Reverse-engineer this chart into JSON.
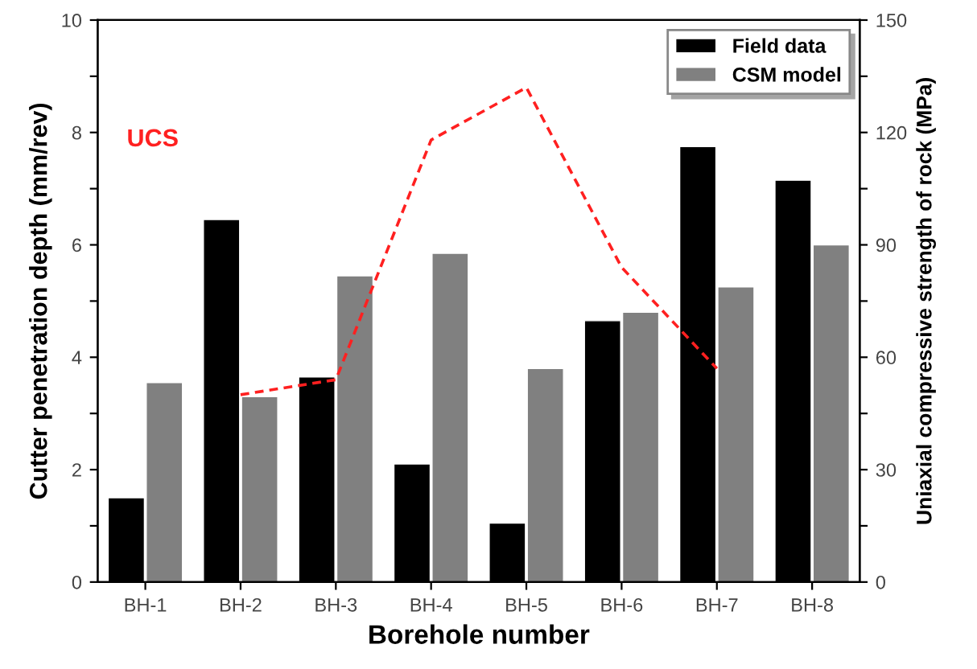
{
  "chart_data": {
    "type": "bar",
    "xlabel": "Borehole number",
    "ylabel": "Cutter penetration depth (mm/rev)",
    "y2label": "Uniaxial compressive strength of rock (MPa)",
    "categories": [
      "BH-1",
      "BH-2",
      "BH-3",
      "BH-4",
      "BH-5",
      "BH-6",
      "BH-7",
      "BH-8"
    ],
    "series": [
      {
        "name": "Field data",
        "color": "#000000",
        "values": [
          1.5,
          6.45,
          3.65,
          2.1,
          1.05,
          4.65,
          7.75,
          7.15
        ]
      },
      {
        "name": "CSM model",
        "color": "#808080",
        "values": [
          3.55,
          3.3,
          5.45,
          5.85,
          3.8,
          4.8,
          5.25,
          6.0
        ]
      },
      {
        "name": "UCS",
        "type": "line",
        "axis": "y2",
        "color": "#ff2020",
        "line_style": "dashed",
        "marker": "none",
        "values": [
          null,
          50,
          54,
          118,
          132,
          84,
          57,
          null
        ]
      }
    ],
    "ylim": [
      0,
      10
    ],
    "yticks": [
      0,
      {
        "value": 1,
        "label": null
      },
      2,
      {
        "value": 3,
        "label": null
      },
      4,
      {
        "value": 5,
        "label": null
      },
      6,
      {
        "value": 7,
        "label": null
      },
      8,
      {
        "value": 9,
        "label": null
      },
      10
    ],
    "y2lim": [
      0,
      150
    ],
    "y2ticks": [
      0,
      {
        "value": 15,
        "label": null
      },
      30,
      {
        "value": 45,
        "label": null
      },
      60,
      {
        "value": 75,
        "label": null
      },
      90,
      {
        "value": 105,
        "label": null
      },
      120,
      {
        "value": 135,
        "label": null
      },
      150
    ],
    "legend": "top right",
    "grid": false
  }
}
